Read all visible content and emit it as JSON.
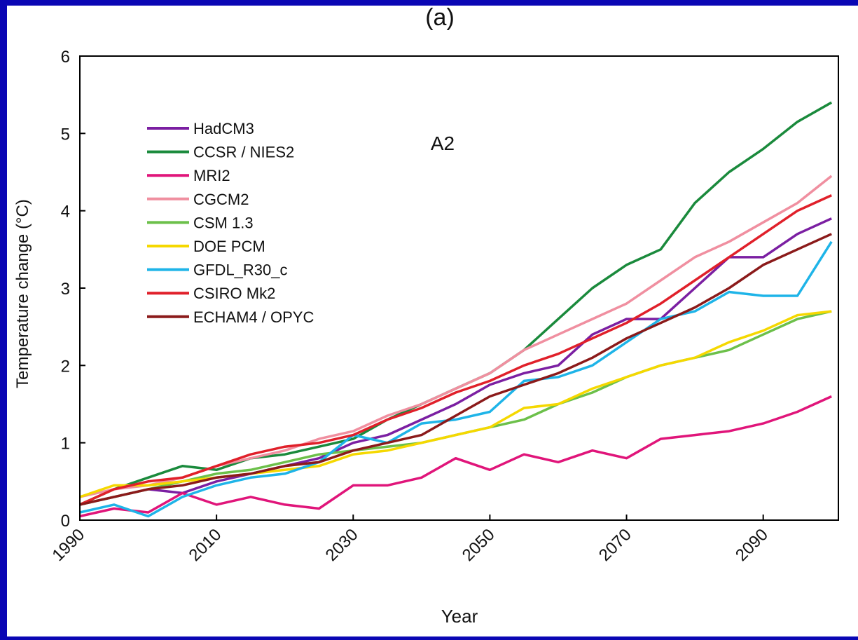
{
  "chart_data": {
    "type": "line",
    "title": "(a)",
    "annotation": "A2",
    "x_label": "Year",
    "y_label": "Temperature change (°C)",
    "x": [
      1990,
      1995,
      2000,
      2005,
      2010,
      2015,
      2020,
      2025,
      2030,
      2035,
      2040,
      2045,
      2050,
      2055,
      2060,
      2065,
      2070,
      2075,
      2080,
      2085,
      2090,
      2095,
      2100
    ],
    "xlim": [
      1990,
      2101
    ],
    "xticks": [
      1990,
      2010,
      2030,
      2050,
      2070,
      2090
    ],
    "ylim": [
      0,
      6
    ],
    "yticks": [
      0,
      1,
      2,
      3,
      4,
      5,
      6
    ],
    "series": [
      {
        "name": "HadCM3",
        "color": "#7b1fa2",
        "values": [
          0.2,
          0.3,
          0.4,
          0.35,
          0.5,
          0.6,
          0.7,
          0.8,
          1.0,
          1.1,
          1.3,
          1.5,
          1.75,
          1.9,
          2.0,
          2.4,
          2.6,
          2.6,
          3.0,
          3.4,
          3.4,
          3.7,
          3.9
        ]
      },
      {
        "name": "CCSR / NIES2",
        "color": "#1a8a3c",
        "values": [
          0.2,
          0.4,
          0.55,
          0.7,
          0.65,
          0.8,
          0.85,
          0.95,
          1.05,
          1.3,
          1.5,
          1.7,
          1.9,
          2.2,
          2.6,
          3.0,
          3.3,
          3.5,
          4.1,
          4.5,
          4.8,
          5.15,
          5.4
        ]
      },
      {
        "name": "MRI2",
        "color": "#e0157a",
        "values": [
          0.05,
          0.15,
          0.1,
          0.35,
          0.2,
          0.3,
          0.2,
          0.15,
          0.45,
          0.45,
          0.55,
          0.8,
          0.65,
          0.85,
          0.75,
          0.9,
          0.8,
          1.05,
          1.1,
          1.15,
          1.25,
          1.4,
          1.6
        ]
      },
      {
        "name": "CGCM2",
        "color": "#f08fa0",
        "values": [
          0.3,
          0.4,
          0.45,
          0.55,
          0.7,
          0.8,
          0.9,
          1.05,
          1.15,
          1.35,
          1.5,
          1.7,
          1.9,
          2.2,
          2.4,
          2.6,
          2.8,
          3.1,
          3.4,
          3.6,
          3.85,
          4.1,
          4.45
        ]
      },
      {
        "name": "CSM 1.3",
        "color": "#6cc04a",
        "values": [
          0.2,
          0.3,
          0.4,
          0.5,
          0.6,
          0.65,
          0.75,
          0.85,
          0.9,
          0.95,
          1.0,
          1.1,
          1.2,
          1.3,
          1.5,
          1.65,
          1.85,
          2.0,
          2.1,
          2.2,
          2.4,
          2.6,
          2.7
        ]
      },
      {
        "name": "DOE PCM",
        "color": "#f5d800",
        "values": [
          0.3,
          0.45,
          0.45,
          0.5,
          0.55,
          0.6,
          0.65,
          0.7,
          0.85,
          0.9,
          1.0,
          1.1,
          1.2,
          1.45,
          1.5,
          1.7,
          1.85,
          2.0,
          2.1,
          2.3,
          2.45,
          2.65,
          2.7
        ]
      },
      {
        "name": "GFDL_R30_c",
        "color": "#1eb4e8",
        "values": [
          0.1,
          0.2,
          0.05,
          0.3,
          0.45,
          0.55,
          0.6,
          0.75,
          1.1,
          1.0,
          1.25,
          1.3,
          1.4,
          1.8,
          1.85,
          2.0,
          2.3,
          2.6,
          2.7,
          2.95,
          2.9,
          2.9,
          3.6
        ]
      },
      {
        "name": "CSIRO Mk2",
        "color": "#e0202a",
        "values": [
          0.2,
          0.4,
          0.5,
          0.55,
          0.7,
          0.85,
          0.95,
          1.0,
          1.1,
          1.3,
          1.45,
          1.65,
          1.8,
          2.0,
          2.15,
          2.35,
          2.55,
          2.8,
          3.1,
          3.4,
          3.7,
          4.0,
          4.2
        ]
      },
      {
        "name": "ECHAM4 / OPYC",
        "color": "#8b1a1a",
        "values": [
          0.2,
          0.3,
          0.4,
          0.45,
          0.55,
          0.6,
          0.7,
          0.75,
          0.9,
          1.0,
          1.1,
          1.35,
          1.6,
          1.75,
          1.9,
          2.1,
          2.35,
          2.55,
          2.75,
          3.0,
          3.3,
          3.5,
          3.7
        ]
      }
    ]
  }
}
